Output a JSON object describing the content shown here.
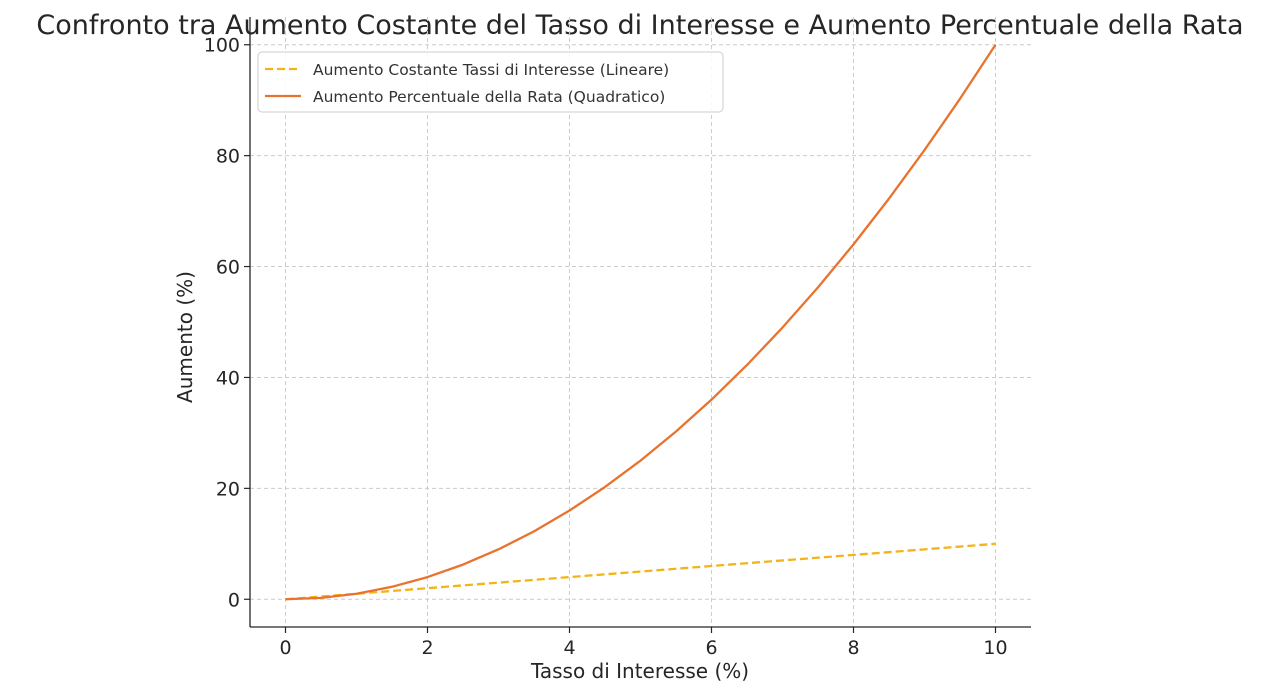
{
  "chart_data": {
    "type": "line",
    "title": "Confronto tra Aumento Costante del Tasso di Interesse e Aumento Percentuale della Rata",
    "xlabel": "Tasso di Interesse (%)",
    "ylabel": "Aumento (%)",
    "xlim": [
      -0.5,
      10.5
    ],
    "ylim": [
      -5,
      105
    ],
    "xticks": [
      0,
      2,
      4,
      6,
      8,
      10
    ],
    "yticks": [
      0,
      20,
      40,
      60,
      80,
      100
    ],
    "grid": true,
    "legend_position": "top-left",
    "series": [
      {
        "name": "Aumento Costante Tassi di Interesse (Lineare)",
        "color": "#F2B418",
        "style": "dashed",
        "x": [
          0,
          1,
          2,
          3,
          4,
          5,
          6,
          7,
          8,
          9,
          10
        ],
        "values": [
          0,
          1,
          2,
          3,
          4,
          5,
          6,
          7,
          8,
          9,
          10
        ]
      },
      {
        "name": "Aumento Percentuale della Rata (Quadratico)",
        "color": "#E8732E",
        "style": "solid",
        "x": [
          0,
          0.5,
          1,
          1.5,
          2,
          2.5,
          3,
          3.5,
          4,
          4.5,
          5,
          5.5,
          6,
          6.5,
          7,
          7.5,
          8,
          8.5,
          9,
          9.5,
          10
        ],
        "values": [
          0,
          0.25,
          1,
          2.25,
          4,
          6.25,
          9,
          12.25,
          16,
          20.25,
          25,
          30.25,
          36,
          42.25,
          49,
          56.25,
          64,
          72.25,
          81,
          90.25,
          100
        ]
      }
    ]
  }
}
